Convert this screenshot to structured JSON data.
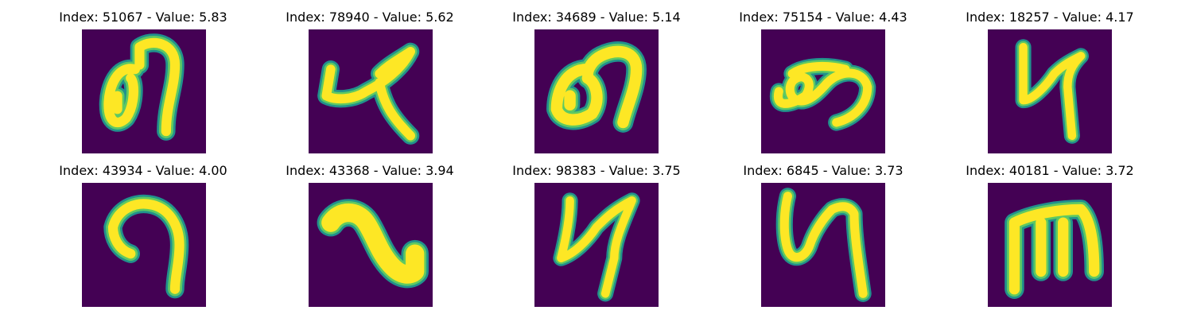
{
  "colors": {
    "background": "#440154",
    "stroke_core": "#fde725",
    "stroke_mid": "#5ec962",
    "stroke_edge": "#21918c"
  },
  "panels": [
    {
      "title": "Index: 51067 - Value: 5.83",
      "glyph": "glyph-51067"
    },
    {
      "title": "Index: 78940 - Value: 5.62",
      "glyph": "glyph-78940"
    },
    {
      "title": "Index: 34689 - Value: 5.14",
      "glyph": "glyph-34689"
    },
    {
      "title": "Index: 75154 - Value: 4.43",
      "glyph": "glyph-75154"
    },
    {
      "title": "Index: 18257 - Value: 4.17",
      "glyph": "glyph-18257"
    },
    {
      "title": "Index: 43934 - Value: 4.00",
      "glyph": "glyph-43934"
    },
    {
      "title": "Index: 43368 - Value: 3.94",
      "glyph": "glyph-43368"
    },
    {
      "title": "Index: 98383 - Value: 3.75",
      "glyph": "glyph-98383"
    },
    {
      "title": "Index: 6845 - Value: 3.73",
      "glyph": "glyph-6845"
    },
    {
      "title": "Index: 40181 - Value: 3.72",
      "glyph": "glyph-40181"
    }
  ]
}
